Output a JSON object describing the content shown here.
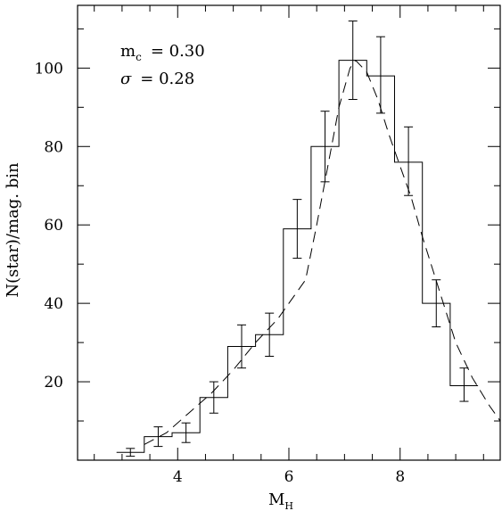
{
  "chart_data": {
    "type": "step-histogram",
    "xlabel": "M",
    "xlabel_subscript": "H",
    "ylabel": "N(star)/mag. bin",
    "xlim": [
      2.2,
      9.8
    ],
    "ylim": [
      0,
      116
    ],
    "x_major_ticks": [
      4,
      6,
      8
    ],
    "x_minor_ticks": [
      2.5,
      3,
      3.5,
      4.5,
      5,
      5.5,
      6.5,
      7,
      7.5,
      8.5,
      9,
      9.5
    ],
    "y_major_ticks": [
      20,
      40,
      60,
      80,
      100
    ],
    "y_minor_ticks": [
      10,
      30,
      50,
      70,
      90,
      110
    ],
    "x_tick_labels": [
      "4",
      "6",
      "8"
    ],
    "y_tick_labels": [
      "20",
      "40",
      "60",
      "80",
      "100"
    ],
    "annotations": {
      "mc_symbol": "m",
      "mc_subscript": "c",
      "mc_value": "=  0.30",
      "sigma_symbol": "σ",
      "sigma_value": "=  0.28"
    },
    "histogram": {
      "bin_edges": [
        2.9,
        3.4,
        3.9,
        4.4,
        4.9,
        5.4,
        5.9,
        6.4,
        6.9,
        7.4,
        7.9,
        8.4,
        8.9,
        9.4
      ],
      "counts": [
        2,
        6,
        7,
        16,
        29,
        32,
        59,
        80,
        102,
        98,
        76,
        40,
        19
      ],
      "error_low": [
        1.0,
        3.5,
        4.5,
        12,
        23.5,
        26.5,
        51.5,
        71,
        92,
        88.5,
        67.5,
        34,
        15
      ],
      "error_high": [
        3.0,
        8.5,
        9.5,
        20,
        34.5,
        37.5,
        66.5,
        89,
        112,
        108,
        85,
        46,
        23.5
      ]
    },
    "model_curve": {
      "style": "dashed",
      "x": [
        3.4,
        3.8,
        4.2,
        4.6,
        5.0,
        5.4,
        5.8,
        6.0,
        6.3,
        6.5,
        6.7,
        6.9,
        7.1,
        7.2,
        7.4,
        7.6,
        7.8,
        8.0,
        8.2,
        8.4,
        8.6,
        8.8,
        9.0,
        9.3,
        9.6,
        9.8
      ],
      "y": [
        4,
        7,
        12,
        17,
        23,
        30,
        36,
        40,
        46,
        60,
        75,
        90,
        100,
        102,
        99,
        92,
        83,
        75,
        67,
        57,
        48,
        39,
        30,
        21,
        14,
        10
      ]
    }
  }
}
